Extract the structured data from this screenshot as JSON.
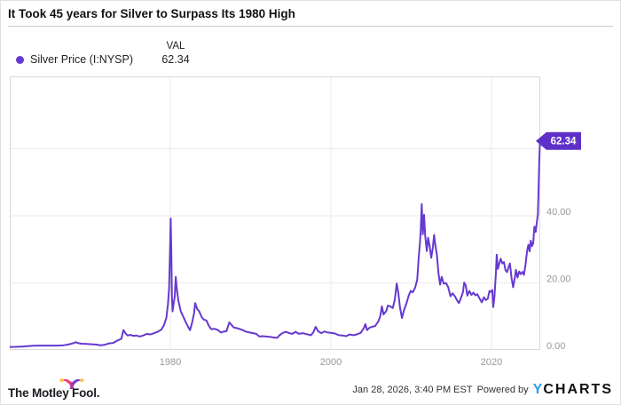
{
  "header": {
    "title": "It Took 45 years for Silver to Surpass Its 1980 High"
  },
  "legend": {
    "series_label": "Silver Price (I:NYSP)",
    "val_header": "VAL",
    "val_value": "62.34",
    "dot_color": "#6639cf"
  },
  "colors": {
    "line": "#6639cf",
    "badge_bg": "#5f30c9",
    "badge_text": "#ffffff",
    "gridline": "#ebebeb",
    "plot_border": "#d9d9d9",
    "axis_text": "#999999",
    "ycharts_blue": "#2a9ceb"
  },
  "chart_data": {
    "type": "line",
    "title": "It Took 45 years for Silver to Surpass Its 1980 High",
    "xlabel": "",
    "ylabel": "",
    "grid": true,
    "legend_position": "top-left",
    "x_axis": {
      "range": [
        1960,
        2026.08
      ],
      "ticks": [
        1980,
        2000,
        2020
      ],
      "tick_labels": [
        "1980",
        "2000",
        "2020"
      ]
    },
    "y_axis": {
      "range": [
        0,
        81.6
      ],
      "side": "right",
      "ticks": [
        0,
        20,
        40
      ],
      "tick_labels": [
        "0.00",
        "20.00",
        "40.00"
      ],
      "gridlines": [
        20,
        40,
        60
      ]
    },
    "end_label": {
      "text": "62.34",
      "value": 62.34
    },
    "series": [
      {
        "name": "Silver Price (I:NYSP)",
        "color": "#6639cf",
        "points": [
          [
            1960.0,
            0.91
          ],
          [
            1960.8,
            0.92
          ],
          [
            1961.5,
            1.0
          ],
          [
            1962.2,
            1.1
          ],
          [
            1963.0,
            1.28
          ],
          [
            1964.0,
            1.29
          ],
          [
            1965.0,
            1.29
          ],
          [
            1966.0,
            1.29
          ],
          [
            1966.8,
            1.4
          ],
          [
            1967.4,
            1.7
          ],
          [
            1967.9,
            2.0
          ],
          [
            1968.2,
            2.3
          ],
          [
            1968.6,
            2.0
          ],
          [
            1969.0,
            1.85
          ],
          [
            1969.6,
            1.8
          ],
          [
            1970.2,
            1.7
          ],
          [
            1970.8,
            1.6
          ],
          [
            1971.3,
            1.4
          ],
          [
            1971.8,
            1.5
          ],
          [
            1972.3,
            1.9
          ],
          [
            1972.9,
            2.1
          ],
          [
            1973.4,
            2.8
          ],
          [
            1973.9,
            3.3
          ],
          [
            1974.15,
            5.9
          ],
          [
            1974.4,
            5.0
          ],
          [
            1974.7,
            4.3
          ],
          [
            1975.0,
            4.5
          ],
          [
            1975.4,
            4.2
          ],
          [
            1975.8,
            4.3
          ],
          [
            1976.2,
            4.0
          ],
          [
            1976.7,
            4.4
          ],
          [
            1977.1,
            4.8
          ],
          [
            1977.5,
            4.6
          ],
          [
            1978.0,
            5.0
          ],
          [
            1978.5,
            5.5
          ],
          [
            1978.9,
            6.1
          ],
          [
            1979.2,
            7.4
          ],
          [
            1979.5,
            9.5
          ],
          [
            1979.7,
            13.5
          ],
          [
            1979.85,
            18.5
          ],
          [
            1979.95,
            28.0
          ],
          [
            1980.04,
            39.2
          ],
          [
            1980.12,
            30.0
          ],
          [
            1980.2,
            16.0
          ],
          [
            1980.28,
            11.5
          ],
          [
            1980.4,
            13.5
          ],
          [
            1980.55,
            16.0
          ],
          [
            1980.68,
            21.8
          ],
          [
            1980.8,
            18.5
          ],
          [
            1981.0,
            14.8
          ],
          [
            1981.3,
            11.5
          ],
          [
            1981.6,
            10.0
          ],
          [
            1981.9,
            8.4
          ],
          [
            1982.2,
            7.0
          ],
          [
            1982.45,
            5.9
          ],
          [
            1982.7,
            8.0
          ],
          [
            1982.95,
            10.8
          ],
          [
            1983.1,
            14.0
          ],
          [
            1983.35,
            12.2
          ],
          [
            1983.6,
            11.5
          ],
          [
            1983.9,
            9.8
          ],
          [
            1984.2,
            9.0
          ],
          [
            1984.5,
            8.8
          ],
          [
            1984.8,
            7.2
          ],
          [
            1985.1,
            6.2
          ],
          [
            1985.5,
            6.3
          ],
          [
            1985.9,
            6.0
          ],
          [
            1986.3,
            5.2
          ],
          [
            1986.7,
            5.5
          ],
          [
            1987.0,
            5.6
          ],
          [
            1987.35,
            8.2
          ],
          [
            1987.6,
            7.5
          ],
          [
            1987.9,
            6.7
          ],
          [
            1988.3,
            6.5
          ],
          [
            1988.7,
            6.2
          ],
          [
            1989.1,
            5.8
          ],
          [
            1989.5,
            5.4
          ],
          [
            1989.9,
            5.2
          ],
          [
            1990.3,
            5.0
          ],
          [
            1990.7,
            4.8
          ],
          [
            1991.1,
            4.0
          ],
          [
            1991.5,
            4.1
          ],
          [
            1991.9,
            4.0
          ],
          [
            1992.4,
            3.9
          ],
          [
            1992.9,
            3.7
          ],
          [
            1993.3,
            3.6
          ],
          [
            1993.6,
            4.4
          ],
          [
            1994.0,
            5.1
          ],
          [
            1994.4,
            5.4
          ],
          [
            1994.8,
            5.0
          ],
          [
            1995.2,
            4.8
          ],
          [
            1995.6,
            5.4
          ],
          [
            1996.0,
            4.8
          ],
          [
            1996.5,
            5.0
          ],
          [
            1997.0,
            4.7
          ],
          [
            1997.5,
            4.4
          ],
          [
            1997.8,
            5.2
          ],
          [
            1998.1,
            6.9
          ],
          [
            1998.4,
            5.6
          ],
          [
            1998.8,
            5.0
          ],
          [
            1999.2,
            5.5
          ],
          [
            1999.6,
            5.2
          ],
          [
            2000.0,
            5.1
          ],
          [
            2000.5,
            4.9
          ],
          [
            2001.0,
            4.4
          ],
          [
            2001.5,
            4.3
          ],
          [
            2001.9,
            4.1
          ],
          [
            2002.3,
            4.6
          ],
          [
            2002.8,
            4.4
          ],
          [
            2003.2,
            4.6
          ],
          [
            2003.7,
            5.1
          ],
          [
            2004.1,
            6.5
          ],
          [
            2004.3,
            7.7
          ],
          [
            2004.5,
            5.9
          ],
          [
            2004.8,
            6.6
          ],
          [
            2005.1,
            6.9
          ],
          [
            2005.5,
            7.1
          ],
          [
            2005.9,
            8.5
          ],
          [
            2006.15,
            10.0
          ],
          [
            2006.35,
            13.0
          ],
          [
            2006.55,
            10.6
          ],
          [
            2006.9,
            11.6
          ],
          [
            2007.1,
            13.2
          ],
          [
            2007.4,
            13.0
          ],
          [
            2007.7,
            12.5
          ],
          [
            2007.95,
            14.8
          ],
          [
            2008.2,
            19.8
          ],
          [
            2008.4,
            17.0
          ],
          [
            2008.6,
            12.8
          ],
          [
            2008.85,
            9.5
          ],
          [
            2009.1,
            11.8
          ],
          [
            2009.4,
            13.8
          ],
          [
            2009.7,
            16.3
          ],
          [
            2009.95,
            17.6
          ],
          [
            2010.2,
            17.2
          ],
          [
            2010.5,
            18.6
          ],
          [
            2010.75,
            21.0
          ],
          [
            2010.95,
            28.0
          ],
          [
            2011.1,
            32.0
          ],
          [
            2011.2,
            36.0
          ],
          [
            2011.32,
            43.5
          ],
          [
            2011.45,
            34.5
          ],
          [
            2011.6,
            40.3
          ],
          [
            2011.75,
            34.0
          ],
          [
            2011.95,
            29.5
          ],
          [
            2012.1,
            33.5
          ],
          [
            2012.3,
            31.0
          ],
          [
            2012.5,
            27.5
          ],
          [
            2012.7,
            30.5
          ],
          [
            2012.85,
            34.3
          ],
          [
            2013.0,
            31.5
          ],
          [
            2013.2,
            28.5
          ],
          [
            2013.4,
            22.8
          ],
          [
            2013.6,
            19.5
          ],
          [
            2013.8,
            21.8
          ],
          [
            2014.05,
            19.8
          ],
          [
            2014.35,
            19.9
          ],
          [
            2014.6,
            18.8
          ],
          [
            2014.9,
            16.0
          ],
          [
            2015.15,
            16.9
          ],
          [
            2015.45,
            16.0
          ],
          [
            2015.7,
            14.8
          ],
          [
            2015.95,
            14.0
          ],
          [
            2016.2,
            15.5
          ],
          [
            2016.45,
            17.3
          ],
          [
            2016.6,
            20.1
          ],
          [
            2016.8,
            19.3
          ],
          [
            2017.0,
            16.2
          ],
          [
            2017.25,
            17.6
          ],
          [
            2017.5,
            16.4
          ],
          [
            2017.75,
            17.1
          ],
          [
            2018.0,
            16.3
          ],
          [
            2018.25,
            16.6
          ],
          [
            2018.55,
            15.2
          ],
          [
            2018.8,
            14.2
          ],
          [
            2019.05,
            15.7
          ],
          [
            2019.3,
            14.9
          ],
          [
            2019.55,
            15.3
          ],
          [
            2019.75,
            17.6
          ],
          [
            2019.95,
            17.3
          ],
          [
            2020.1,
            17.9
          ],
          [
            2020.22,
            12.8
          ],
          [
            2020.38,
            16.0
          ],
          [
            2020.55,
            23.0
          ],
          [
            2020.65,
            28.4
          ],
          [
            2020.8,
            24.2
          ],
          [
            2020.95,
            25.6
          ],
          [
            2021.15,
            27.2
          ],
          [
            2021.35,
            25.8
          ],
          [
            2021.55,
            26.2
          ],
          [
            2021.75,
            23.8
          ],
          [
            2021.95,
            23.2
          ],
          [
            2022.15,
            24.8
          ],
          [
            2022.3,
            25.8
          ],
          [
            2022.5,
            21.5
          ],
          [
            2022.7,
            18.7
          ],
          [
            2022.9,
            21.3
          ],
          [
            2023.05,
            23.9
          ],
          [
            2023.25,
            21.6
          ],
          [
            2023.45,
            23.4
          ],
          [
            2023.65,
            22.6
          ],
          [
            2023.85,
            23.3
          ],
          [
            2024.05,
            22.4
          ],
          [
            2024.25,
            25.5
          ],
          [
            2024.45,
            29.6
          ],
          [
            2024.6,
            31.4
          ],
          [
            2024.75,
            29.4
          ],
          [
            2024.9,
            32.6
          ],
          [
            2025.05,
            31.0
          ],
          [
            2025.2,
            31.8
          ],
          [
            2025.35,
            36.8
          ],
          [
            2025.5,
            35.2
          ],
          [
            2025.65,
            38.0
          ],
          [
            2025.78,
            40.5
          ],
          [
            2025.88,
            49.0
          ],
          [
            2025.96,
            56.5
          ],
          [
            2026.05,
            62.34
          ]
        ]
      }
    ]
  },
  "footer": {
    "motley_fool_text": "The Motley Fool.",
    "timestamp": "Jan 28, 2026, 3:40 PM EST",
    "powered_by": "Powered by",
    "ycharts_y": "Y",
    "ycharts_rest": "CHARTS"
  }
}
